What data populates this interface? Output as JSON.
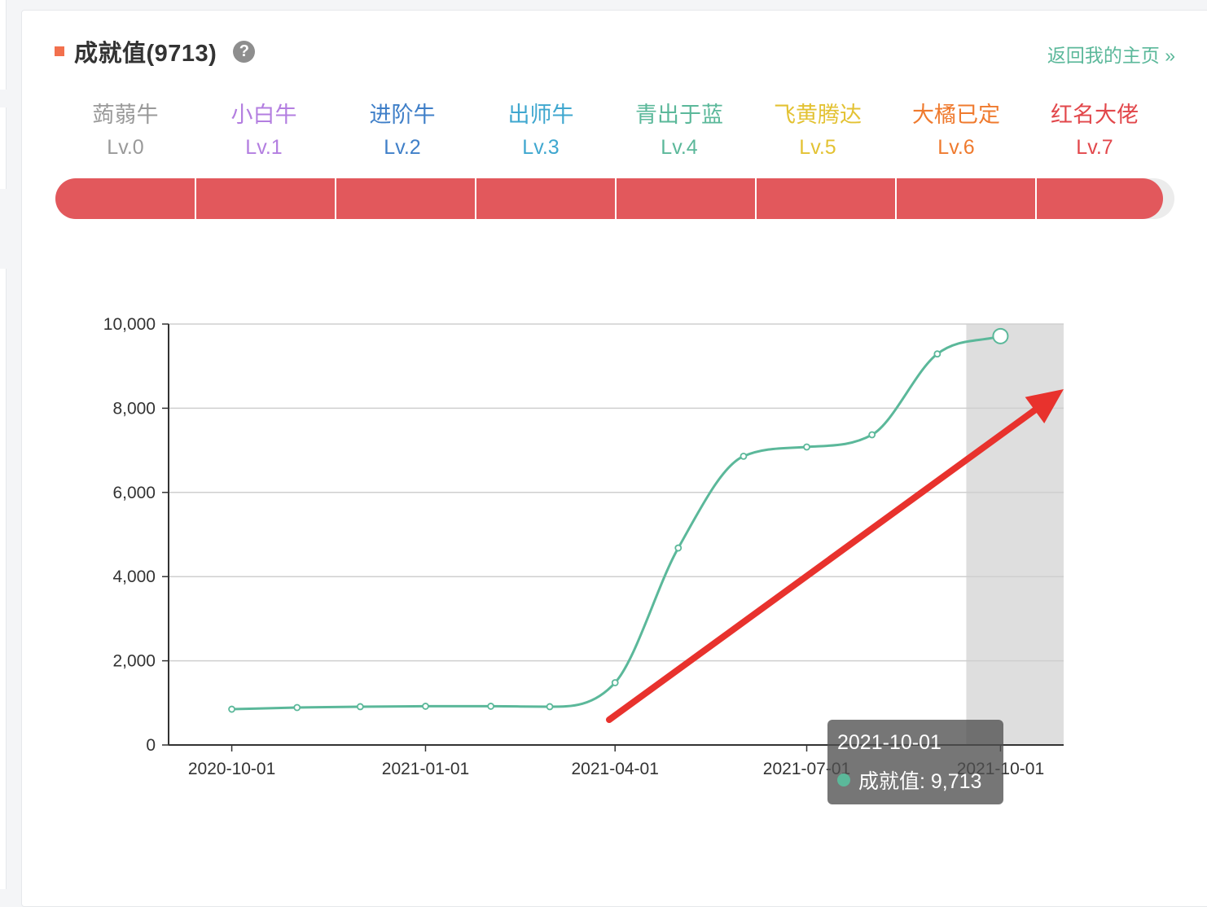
{
  "header": {
    "title": "成就值(9713)",
    "help_icon": "question-icon",
    "back_link": "返回我的主页 »"
  },
  "levels": [
    {
      "name": "蒟蒻牛",
      "code": "Lv.0",
      "color": "#999999"
    },
    {
      "name": "小白牛",
      "code": "Lv.1",
      "color": "#b37ee0"
    },
    {
      "name": "进阶牛",
      "code": "Lv.2",
      "color": "#3f7fc8"
    },
    {
      "name": "出师牛",
      "code": "Lv.3",
      "color": "#3fa7cf"
    },
    {
      "name": "青出于蓝",
      "code": "Lv.4",
      "color": "#5bb89a"
    },
    {
      "name": "飞黄腾达",
      "code": "Lv.5",
      "color": "#e3c233"
    },
    {
      "name": "大橘已定",
      "code": "Lv.6",
      "color": "#ef7a2e"
    },
    {
      "name": "红名大佬",
      "code": "Lv.7",
      "color": "#e2474b"
    }
  ],
  "progress": {
    "fraction": 0.99,
    "segments": 8,
    "fill_color": "#e2585c"
  },
  "chart_data": {
    "type": "line",
    "smooth": true,
    "x": [
      "2020-10-01",
      "2020-11-01",
      "2020-12-01",
      "2021-01-01",
      "2021-02-01",
      "2021-03-01",
      "2021-04-01",
      "2021-05-01",
      "2021-06-01",
      "2021-07-01",
      "2021-08-01",
      "2021-09-01",
      "2021-10-01"
    ],
    "series": [
      {
        "name": "成就值",
        "color": "#5bb89a",
        "values": [
          850,
          890,
          910,
          920,
          920,
          910,
          1480,
          4680,
          6860,
          7080,
          7370,
          9290,
          9713
        ]
      }
    ],
    "xticks": [
      "2020-10-01",
      "2021-01-01",
      "2021-04-01",
      "2021-07-01",
      "2021-10-01"
    ],
    "yticks": [
      "0",
      "2,000",
      "4,000",
      "6,000",
      "8,000",
      "10,000"
    ],
    "ylim": [
      0,
      10000
    ],
    "grid": true,
    "highlight_x": "2021-10-01",
    "annotation": {
      "type": "arrow",
      "color": "#e8322d"
    },
    "tooltip": {
      "date": "2021-10-01",
      "label": "成就值: 9,713"
    }
  }
}
